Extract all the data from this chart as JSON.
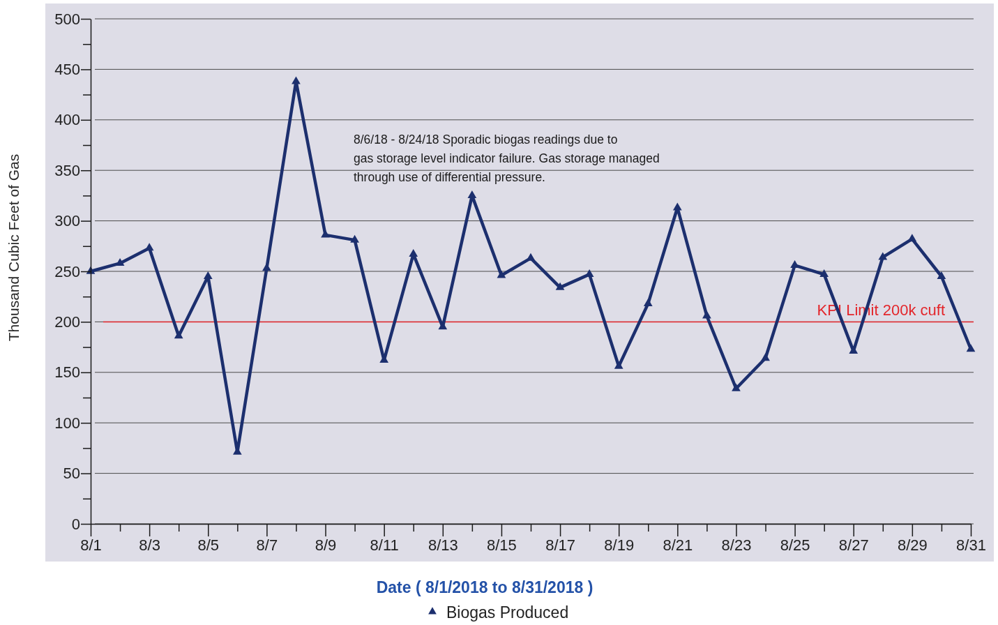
{
  "chart_data": {
    "type": "line",
    "xlabel": "Date ( 8/1/2018 to 8/31/2018 )",
    "ylabel": "Thousand Cubic Feet of Gas",
    "annotations": [
      "8/6/18 - 8/24/18 Sporadic biogas readings due to\ngas storage level indicator failure.  Gas storage managed\nthrough use of differential pressure."
    ],
    "x": [
      "--08-01",
      "--08-02",
      "--08-03",
      "--08-04",
      "--08-05",
      "--08-06",
      "--08-07",
      "--08-08",
      "--08-09",
      "--08-10",
      "--08-11",
      "--08-12",
      "--08-13",
      "--08-14",
      "--08-15",
      "--08-16",
      "--08-17",
      "--08-18",
      "--08-19",
      "--08-20",
      "--08-21",
      "--08-22",
      "--08-23",
      "--08-24",
      "--08-25",
      "--08-26",
      "--08-27",
      "--08-28",
      "--08-29",
      "--08-30",
      "--08-31"
    ],
    "series": [
      {
        "name": "Biogas Produced",
        "color": "#1c2f6e",
        "values": [
          250,
          258,
          273,
          186,
          245,
          71,
          253,
          438,
          286,
          281,
          162,
          267,
          195,
          325,
          246,
          263,
          234,
          247,
          156,
          218,
          313,
          206,
          134,
          164,
          256,
          247,
          171,
          264,
          282,
          245,
          173
        ]
      }
    ],
    "xlim": [
      "--08-01",
      "--08-31"
    ],
    "xticks": [
      {
        "value": "--08-01",
        "label": "8/1"
      },
      {
        "value": "--08-02",
        "label": null
      },
      {
        "value": "--08-03",
        "label": "8/3"
      },
      {
        "value": "--08-04",
        "label": null
      },
      {
        "value": "--08-05",
        "label": "8/5"
      },
      {
        "value": "--08-06",
        "label": null
      },
      {
        "value": "--08-07",
        "label": "8/7"
      },
      {
        "value": "--08-08",
        "label": null
      },
      {
        "value": "--08-09",
        "label": "8/9"
      },
      {
        "value": "--08-10",
        "label": null
      },
      {
        "value": "--08-11",
        "label": "8/11"
      },
      {
        "value": "--08-12",
        "label": null
      },
      {
        "value": "--08-13",
        "label": "8/13"
      },
      {
        "value": "--08-14",
        "label": null
      },
      {
        "value": "--08-15",
        "label": "8/15"
      },
      {
        "value": "--08-16",
        "label": null
      },
      {
        "value": "--08-17",
        "label": "8/17"
      },
      {
        "value": "--08-18",
        "label": null
      },
      {
        "value": "--08-19",
        "label": "8/19"
      },
      {
        "value": "--08-20",
        "label": null
      },
      {
        "value": "--08-21",
        "label": "8/21"
      },
      {
        "value": "--08-22",
        "label": null
      },
      {
        "value": "--08-23",
        "label": "8/23"
      },
      {
        "value": "--08-24",
        "label": null
      },
      {
        "value": "--08-25",
        "label": "8/25"
      },
      {
        "value": "--08-26",
        "label": null
      },
      {
        "value": "--08-27",
        "label": "8/27"
      },
      {
        "value": "--08-28",
        "label": null
      },
      {
        "value": "--08-29",
        "label": "8/29"
      },
      {
        "value": "--08-30",
        "label": null
      },
      {
        "value": "--08-31",
        "label": "8/31"
      }
    ],
    "ylim": [
      0,
      500
    ],
    "yticks": [
      0,
      {
        "value": 25,
        "label": null
      },
      50,
      {
        "value": 75,
        "label": null
      },
      100,
      {
        "value": 125,
        "label": null
      },
      150,
      {
        "value": 175,
        "label": null
      },
      200,
      {
        "value": 225,
        "label": null
      },
      250,
      {
        "value": 275,
        "label": null
      },
      300,
      {
        "value": 325,
        "label": null
      },
      350,
      {
        "value": 375,
        "label": null
      },
      400,
      {
        "value": 425,
        "label": null
      },
      450,
      {
        "value": 475,
        "label": null
      },
      500
    ],
    "grid": "y",
    "legend": "bottom",
    "marker": "triangle",
    "ref_lines": [
      {
        "axis": "y",
        "value": 200,
        "label": "KPI Limit 200k cuft",
        "color": "#e3262b"
      }
    ]
  }
}
